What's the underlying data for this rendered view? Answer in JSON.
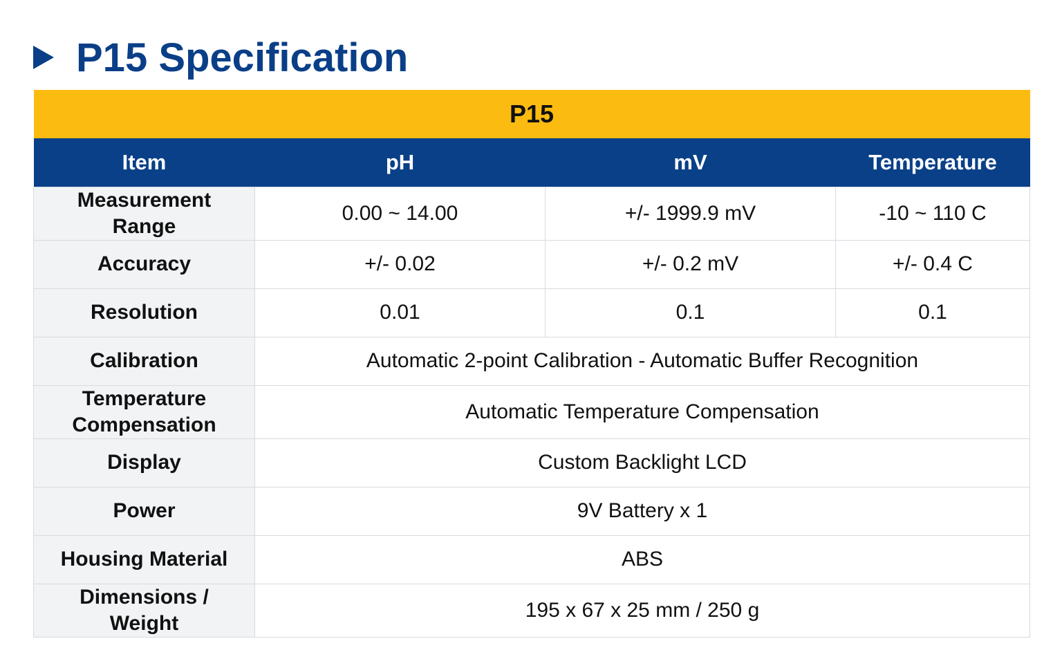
{
  "header": {
    "title": "P15 Specification"
  },
  "table": {
    "title": "P15",
    "columns": [
      "Item",
      "pH",
      "mV",
      "Temperature"
    ],
    "rows": [
      [
        "Measurement Range",
        "0.00 ~ 14.00",
        "+/- 1999.9 mV",
        "-10 ~ 110 C"
      ],
      [
        "Accuracy",
        "+/- 0.02",
        "+/- 0.2 mV",
        "+/- 0.4 C"
      ],
      [
        "Resolution",
        "0.01",
        "0.1",
        "0.1"
      ],
      [
        "Calibration",
        "Automatic 2-point Calibration - Automatic Buffer Recognition"
      ],
      [
        "Temperature Compensation",
        "Automatic Temperature Compensation"
      ],
      [
        "Display",
        "Custom Backlight LCD"
      ],
      [
        "Power",
        "9V Battery x 1"
      ],
      [
        "Housing Material",
        "ABS"
      ],
      [
        "Dimensions / Weight",
        "195 x 67 x 25 mm / 250 g"
      ]
    ]
  }
}
